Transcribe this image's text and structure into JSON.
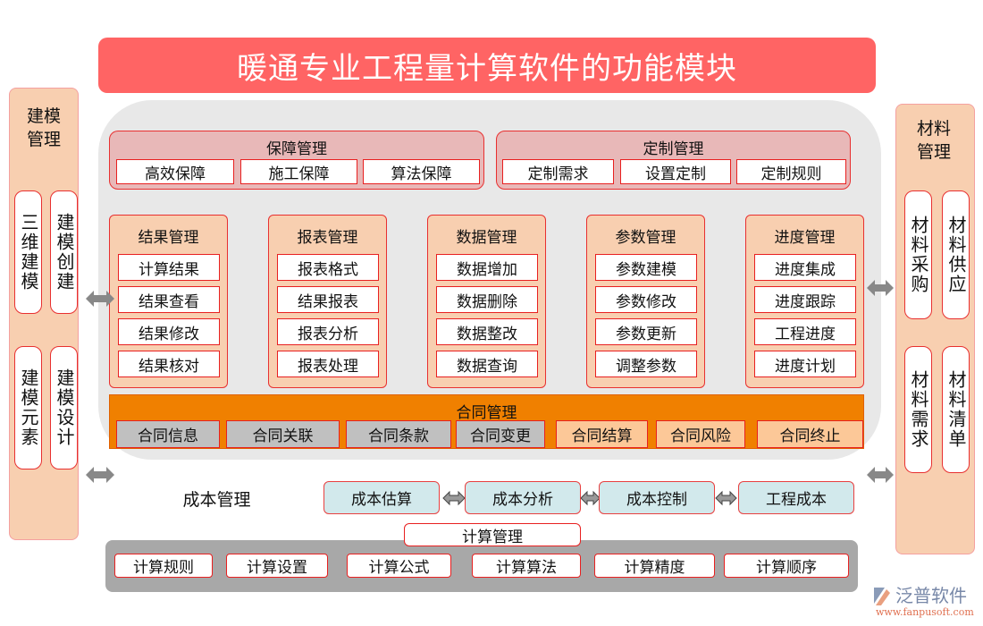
{
  "title": "暖通专业工程量计算软件的功能模块",
  "left": {
    "title": "建模管理",
    "items": [
      "三维建模",
      "建模创建",
      "建模元素",
      "建模设计"
    ]
  },
  "right": {
    "title": "材料管理",
    "items": [
      "材料采购",
      "材料供应",
      "材料需求",
      "材料清单"
    ]
  },
  "baozhang": {
    "title": "保障管理",
    "items": [
      "高效保障",
      "施工保障",
      "算法保障"
    ]
  },
  "dingzhi": {
    "title": "定制管理",
    "items": [
      "定制需求",
      "设置定制",
      "定制规则"
    ]
  },
  "modules": [
    {
      "title": "结果管理",
      "items": [
        "计算结果",
        "结果查看",
        "结果修改",
        "结果核对"
      ]
    },
    {
      "title": "报表管理",
      "items": [
        "报表格式",
        "结果报表",
        "报表分析",
        "报表处理"
      ]
    },
    {
      "title": "数据管理",
      "items": [
        "数据增加",
        "数据删除",
        "数据整改",
        "数据查询"
      ]
    },
    {
      "title": "参数管理",
      "items": [
        "参数建模",
        "参数修改",
        "参数更新",
        "调整参数"
      ]
    },
    {
      "title": "进度管理",
      "items": [
        "进度集成",
        "进度跟踪",
        "工程进度",
        "进度计划"
      ]
    }
  ],
  "contract": {
    "title": "合同管理",
    "items": [
      "合同信息",
      "合同关联",
      "合同条款",
      "合同变更",
      "合同结算",
      "合同风险",
      "合同终止"
    ]
  },
  "cost": {
    "title": "成本管理",
    "items": [
      "成本估算",
      "成本分析",
      "成本控制",
      "工程成本"
    ]
  },
  "calc": {
    "title": "计算管理",
    "items": [
      "计算规则",
      "计算设置",
      "计算公式",
      "计算算法",
      "计算精度",
      "计算顺序"
    ]
  },
  "logo": {
    "name": "泛普软件",
    "url": "www.fanpusoft.com"
  },
  "colors": {
    "title": "#ff6464",
    "peach": "#f8cfb0",
    "orange": "#f08000",
    "border": "#e83030",
    "cost": "#d2e9ec"
  }
}
